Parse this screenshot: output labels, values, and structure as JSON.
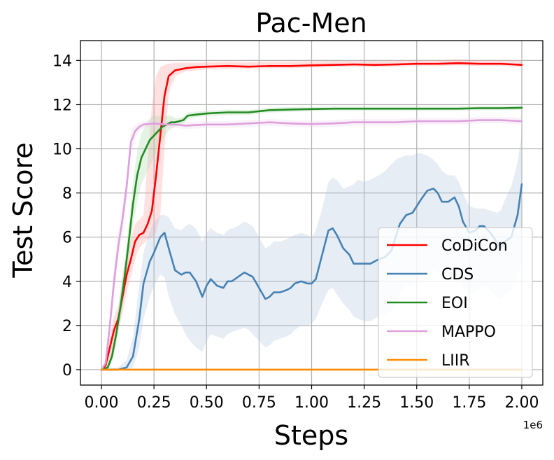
{
  "chart_data": {
    "type": "line",
    "title": "Pac-Men",
    "xlabel": "Steps",
    "ylabel": "Test Score",
    "x_offset_label": "1e6",
    "xlim": [
      -0.1,
      2.1
    ],
    "ylim": [
      -0.7,
      14.9
    ],
    "x_ticks": [
      0,
      0.25,
      0.5,
      0.75,
      1.0,
      1.25,
      1.5,
      1.75,
      2.0
    ],
    "x_tick_labels": [
      "0.00",
      "0.25",
      "0.50",
      "0.75",
      "1.00",
      "1.25",
      "1.50",
      "1.75",
      "2.00"
    ],
    "y_ticks": [
      0,
      2,
      4,
      6,
      8,
      10,
      12,
      14
    ],
    "y_tick_labels": [
      "0",
      "2",
      "4",
      "6",
      "8",
      "10",
      "12",
      "14"
    ],
    "grid": true,
    "legend_position": "lower-right",
    "series": [
      {
        "name": "CoDiCon",
        "color": "#ff0000",
        "band_color": "#ff9a9a",
        "x": [
          0,
          0.02,
          0.04,
          0.06,
          0.08,
          0.1,
          0.12,
          0.14,
          0.16,
          0.18,
          0.2,
          0.22,
          0.24,
          0.26,
          0.28,
          0.3,
          0.32,
          0.35,
          0.4,
          0.45,
          0.5,
          0.6,
          0.7,
          0.8,
          0.9,
          1.0,
          1.1,
          1.2,
          1.3,
          1.4,
          1.5,
          1.6,
          1.7,
          1.8,
          1.9,
          2.0
        ],
        "y": [
          0,
          0.2,
          1.0,
          1.8,
          2.3,
          3.3,
          4.3,
          5.0,
          5.8,
          6.1,
          6.2,
          6.6,
          7.2,
          8.8,
          10.6,
          12.4,
          13.3,
          13.55,
          13.65,
          13.7,
          13.72,
          13.75,
          13.72,
          13.75,
          13.75,
          13.78,
          13.8,
          13.82,
          13.8,
          13.82,
          13.85,
          13.85,
          13.88,
          13.85,
          13.85,
          13.8
        ],
        "band_lower": [
          0,
          0,
          0.5,
          1.2,
          1.8,
          2.5,
          3.5,
          4.2,
          5.0,
          5.5,
          5.7,
          5.9,
          6.0,
          6.2,
          7.0,
          10.0,
          12.5,
          13.3,
          13.5,
          13.55,
          13.6,
          13.62,
          13.62,
          13.65,
          13.65,
          13.68,
          13.7,
          13.72,
          13.7,
          13.72,
          13.75,
          13.75,
          13.78,
          13.75,
          13.75,
          13.7
        ],
        "band_upper": [
          0,
          0.4,
          1.5,
          2.4,
          2.9,
          4.2,
          5.3,
          5.9,
          6.6,
          6.8,
          7.0,
          9.5,
          12.0,
          13.3,
          13.7,
          13.8,
          13.85,
          13.9,
          13.9,
          13.9,
          13.92,
          13.95,
          13.92,
          13.95,
          13.95,
          13.97,
          13.98,
          14.0,
          13.98,
          14.0,
          14.02,
          14.02,
          14.05,
          14.02,
          14.02,
          14.0
        ]
      },
      {
        "name": "CDS",
        "color": "#4682b4",
        "band_color": "#b0c4de",
        "x": [
          0,
          0.08,
          0.1,
          0.12,
          0.15,
          0.18,
          0.2,
          0.23,
          0.25,
          0.28,
          0.3,
          0.32,
          0.35,
          0.38,
          0.4,
          0.42,
          0.45,
          0.48,
          0.5,
          0.52,
          0.55,
          0.58,
          0.6,
          0.62,
          0.65,
          0.68,
          0.7,
          0.72,
          0.75,
          0.78,
          0.8,
          0.82,
          0.85,
          0.88,
          0.9,
          0.92,
          0.95,
          0.98,
          1.0,
          1.02,
          1.05,
          1.08,
          1.1,
          1.12,
          1.15,
          1.18,
          1.2,
          1.22,
          1.25,
          1.28,
          1.3,
          1.32,
          1.35,
          1.38,
          1.4,
          1.42,
          1.45,
          1.48,
          1.5,
          1.52,
          1.55,
          1.58,
          1.6,
          1.62,
          1.65,
          1.68,
          1.7,
          1.72,
          1.75,
          1.78,
          1.8,
          1.82,
          1.85,
          1.88,
          1.9,
          1.92,
          1.95,
          1.98,
          2.0
        ],
        "y": [
          0,
          0,
          0.05,
          0.1,
          0.6,
          2.3,
          3.9,
          4.9,
          5.3,
          6.0,
          6.2,
          5.5,
          4.5,
          4.3,
          4.4,
          4.4,
          4.0,
          3.3,
          3.8,
          4.1,
          3.8,
          3.7,
          4.0,
          4.0,
          4.2,
          4.4,
          4.3,
          4.2,
          3.7,
          3.2,
          3.3,
          3.5,
          3.5,
          3.6,
          3.7,
          3.9,
          4.0,
          3.9,
          3.9,
          4.1,
          5.2,
          6.3,
          6.4,
          6.1,
          5.5,
          5.2,
          4.8,
          4.8,
          4.8,
          4.8,
          4.9,
          5.0,
          5.1,
          5.4,
          6.0,
          6.6,
          7.0,
          7.1,
          7.4,
          7.7,
          8.1,
          8.2,
          8.0,
          7.6,
          7.6,
          7.8,
          7.4,
          6.7,
          6.2,
          6.3,
          6.5,
          6.5,
          6.2,
          5.8,
          5.5,
          5.8,
          6.0,
          7.0,
          8.4
        ],
        "band_lower": [
          0,
          0,
          0,
          0,
          0.1,
          1.0,
          2.3,
          3.3,
          3.8,
          4.3,
          4.2,
          3.3,
          2.5,
          2.0,
          1.6,
          1.3,
          1.0,
          0.8,
          1.3,
          1.6,
          1.5,
          1.4,
          1.6,
          1.7,
          1.8,
          1.9,
          1.8,
          1.6,
          1.3,
          1.0,
          1.1,
          1.3,
          1.4,
          1.5,
          1.6,
          1.8,
          2.0,
          2.0,
          2.1,
          2.3,
          3.0,
          3.6,
          3.7,
          3.4,
          3.0,
          2.7,
          2.4,
          2.3,
          2.2,
          2.2,
          2.3,
          2.4,
          2.5,
          2.7,
          3.0,
          3.5,
          3.8,
          3.8,
          4.0,
          4.2,
          4.4,
          4.5,
          4.4,
          4.2,
          4.3,
          4.4,
          4.1,
          3.7,
          3.4,
          3.5,
          3.7,
          3.8,
          3.6,
          3.3,
          3.2,
          3.4,
          3.6,
          4.2,
          5.0
        ],
        "band_upper": [
          0,
          0.1,
          0.3,
          0.4,
          1.5,
          3.8,
          5.3,
          6.3,
          6.7,
          7.0,
          7.0,
          6.9,
          6.4,
          6.3,
          6.5,
          6.6,
          6.4,
          5.8,
          6.2,
          6.4,
          6.2,
          6.1,
          6.3,
          6.4,
          6.5,
          6.7,
          6.6,
          6.5,
          6.0,
          5.5,
          5.6,
          5.8,
          5.8,
          5.9,
          6.0,
          6.1,
          6.2,
          6.1,
          6.0,
          6.3,
          7.3,
          8.5,
          8.7,
          8.6,
          8.2,
          8.3,
          8.4,
          8.6,
          8.5,
          8.6,
          8.7,
          8.8,
          9.0,
          9.3,
          9.5,
          9.6,
          9.7,
          9.7,
          9.8,
          9.8,
          9.7,
          9.5,
          9.3,
          9.0,
          8.8,
          8.8,
          8.5,
          8.0,
          7.4,
          7.3,
          7.3,
          7.3,
          7.2,
          7.1,
          7.2,
          7.7,
          8.3,
          9.4,
          10.7
        ]
      },
      {
        "name": "EOI",
        "color": "#228b22",
        "band_color": "#a8d8a8",
        "x": [
          0,
          0.03,
          0.05,
          0.07,
          0.09,
          0.11,
          0.13,
          0.15,
          0.17,
          0.19,
          0.21,
          0.23,
          0.25,
          0.27,
          0.29,
          0.31,
          0.33,
          0.35,
          0.37,
          0.39,
          0.41,
          0.45,
          0.5,
          0.6,
          0.7,
          0.8,
          0.9,
          1.0,
          1.1,
          1.2,
          1.3,
          1.4,
          1.5,
          1.6,
          1.7,
          1.8,
          1.9,
          2.0
        ],
        "y": [
          0,
          0.1,
          0.6,
          1.6,
          2.8,
          4.2,
          5.8,
          7.5,
          8.8,
          9.6,
          10.0,
          10.4,
          10.6,
          10.8,
          11.0,
          11.1,
          11.2,
          11.2,
          11.25,
          11.3,
          11.5,
          11.55,
          11.6,
          11.65,
          11.65,
          11.75,
          11.78,
          11.8,
          11.82,
          11.82,
          11.82,
          11.82,
          11.82,
          11.82,
          11.82,
          11.84,
          11.84,
          11.86
        ],
        "band_lower": [
          0,
          0,
          0.3,
          1.1,
          2.2,
          3.5,
          5.0,
          6.5,
          7.6,
          8.4,
          8.8,
          9.2,
          9.6,
          10.0,
          10.4,
          10.7,
          10.9,
          11.0,
          11.1,
          11.15,
          11.35,
          11.42,
          11.48,
          11.52,
          11.54,
          11.64,
          11.67,
          11.7,
          11.72,
          11.72,
          11.72,
          11.72,
          11.72,
          11.72,
          11.72,
          11.74,
          11.74,
          11.76
        ],
        "band_upper": [
          0,
          0.2,
          0.9,
          2.1,
          3.4,
          4.9,
          6.6,
          8.5,
          9.9,
          10.7,
          11.1,
          11.4,
          11.5,
          11.5,
          11.5,
          11.5,
          11.5,
          11.4,
          11.4,
          11.45,
          11.65,
          11.68,
          11.72,
          11.78,
          11.76,
          11.86,
          11.89,
          11.9,
          11.92,
          11.92,
          11.92,
          11.92,
          11.92,
          11.92,
          11.92,
          11.94,
          11.94,
          11.96
        ]
      },
      {
        "name": "MAPPO",
        "color": "#dda0dd",
        "band_color": "#eed0ee",
        "x": [
          0,
          0.02,
          0.04,
          0.06,
          0.08,
          0.1,
          0.12,
          0.14,
          0.16,
          0.18,
          0.2,
          0.25,
          0.3,
          0.35,
          0.4,
          0.5,
          0.6,
          0.7,
          0.8,
          0.9,
          1.0,
          1.1,
          1.2,
          1.3,
          1.4,
          1.5,
          1.6,
          1.7,
          1.8,
          1.9,
          2.0
        ],
        "y": [
          0,
          0.3,
          2.0,
          4.0,
          5.6,
          6.8,
          8.3,
          10.3,
          10.8,
          11.0,
          11.1,
          11.15,
          11.1,
          11.1,
          11.05,
          11.1,
          11.1,
          11.15,
          11.2,
          11.15,
          11.12,
          11.15,
          11.2,
          11.2,
          11.2,
          11.25,
          11.25,
          11.25,
          11.3,
          11.3,
          11.25
        ],
        "band_lower": [
          0,
          0.1,
          1.5,
          3.4,
          5.0,
          6.2,
          7.7,
          9.8,
          10.5,
          10.8,
          10.95,
          11.0,
          10.95,
          10.95,
          10.9,
          10.95,
          10.95,
          11.0,
          11.05,
          11.0,
          10.97,
          11.0,
          11.05,
          11.05,
          11.05,
          11.1,
          11.1,
          11.1,
          11.15,
          11.15,
          11.1
        ],
        "band_upper": [
          0,
          0.5,
          2.5,
          4.6,
          6.2,
          7.4,
          8.9,
          10.8,
          11.1,
          11.2,
          11.25,
          11.3,
          11.25,
          11.25,
          11.2,
          11.25,
          11.25,
          11.3,
          11.35,
          11.3,
          11.27,
          11.3,
          11.35,
          11.35,
          11.35,
          11.4,
          11.4,
          11.4,
          11.45,
          11.45,
          11.4
        ]
      },
      {
        "name": "LIIR",
        "color": "#ff8c00",
        "band_color": "#ffd59a",
        "x": [
          0,
          2.0
        ],
        "y": [
          0,
          0
        ],
        "band_lower": [
          0,
          0
        ],
        "band_upper": [
          0,
          0
        ]
      }
    ]
  }
}
